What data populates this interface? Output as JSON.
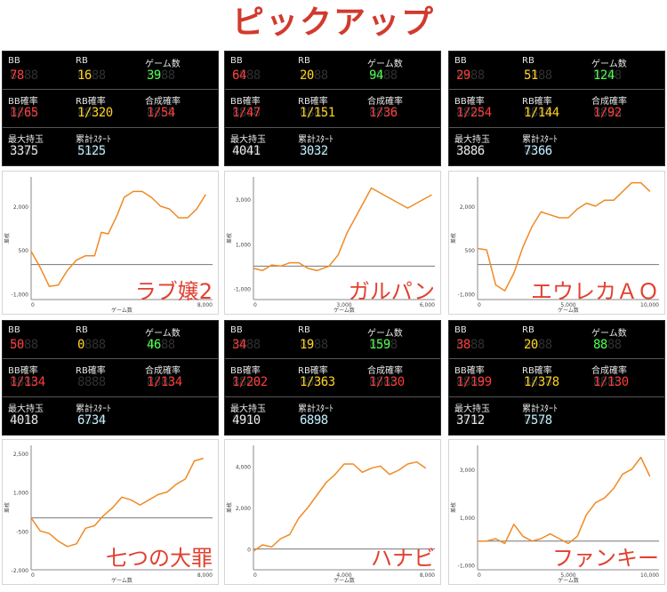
{
  "page_title": "ピックアップ",
  "labels": {
    "bb": "BB",
    "rb": "RB",
    "games": "ゲーム数",
    "bb_prob": "BB確率",
    "rb_prob": "RB確率",
    "combined_prob": "合成確率",
    "max_medals": "最大持玉",
    "total_starts": "累計ｽﾀｰﾄ",
    "y_axis": "差枚",
    "x_axis": "ゲーム数"
  },
  "machines": [
    {
      "name": "ラブ嬢2",
      "bb": "78",
      "rb": "16",
      "games": "39",
      "bb_prob": "1/65",
      "rb_prob": "1/320",
      "combined_prob": "1/54",
      "max_medals": "3375",
      "total_starts": "5125"
    },
    {
      "name": "ガルパン",
      "bb": "64",
      "rb": "20",
      "games": "94",
      "bb_prob": "1/47",
      "rb_prob": "1/151",
      "combined_prob": "1/36",
      "max_medals": "4041",
      "total_starts": "3032"
    },
    {
      "name": "エウレカＡＯ",
      "bb": "29",
      "rb": "51",
      "games": "124",
      "bb_prob": "1/254",
      "rb_prob": "1/144",
      "combined_prob": "1/92",
      "max_medals": "3886",
      "total_starts": "7366"
    },
    {
      "name": "七つの大罪",
      "bb": "50",
      "rb": "0",
      "games": "46",
      "bb_prob": "1/134",
      "rb_prob": "",
      "combined_prob": "1/134",
      "max_medals": "4018",
      "total_starts": "6734"
    },
    {
      "name": "ハナビ",
      "bb": "34",
      "rb": "19",
      "games": "159",
      "bb_prob": "1/202",
      "rb_prob": "1/363",
      "combined_prob": "1/130",
      "max_medals": "4910",
      "total_starts": "6898"
    },
    {
      "name": "ファンキー",
      "bb": "38",
      "rb": "20",
      "games": "88",
      "bb_prob": "1/199",
      "rb_prob": "1/378",
      "combined_prob": "1/130",
      "max_medals": "3712",
      "total_starts": "7578"
    }
  ],
  "chart_data": [
    {
      "type": "line",
      "xlim": [
        0,
        8000
      ],
      "ylim": [
        -1200,
        3000
      ],
      "xticks": [
        "0",
        "",
        "8,000"
      ],
      "yticks": [
        "2,000",
        "500",
        "-1,000"
      ],
      "x": [
        0,
        400,
        800,
        1200,
        1600,
        2000,
        2400,
        2800,
        3100,
        3400,
        3800,
        4100,
        4500,
        4900,
        5300,
        5700,
        6100,
        6500,
        6900,
        7300,
        7700
      ],
      "y": [
        450,
        -100,
        -750,
        -700,
        -200,
        150,
        300,
        300,
        1100,
        1050,
        1700,
        2300,
        2500,
        2500,
        2300,
        2000,
        1900,
        1600,
        1600,
        1900,
        2400
      ]
    },
    {
      "type": "line",
      "xlim": [
        0,
        6000
      ],
      "ylim": [
        -1500,
        4000
      ],
      "xticks": [
        "0",
        "3,000",
        "6,000"
      ],
      "yticks": [
        "3,000",
        "1,000",
        "-1,000"
      ],
      "x": [
        0,
        300,
        600,
        900,
        1200,
        1500,
        1800,
        2100,
        2500,
        2800,
        3100,
        3500,
        3900,
        4300,
        4700,
        5100,
        5500,
        5900
      ],
      "y": [
        -100,
        -200,
        50,
        0,
        150,
        150,
        -100,
        -200,
        0,
        500,
        1500,
        2500,
        3500,
        3200,
        2900,
        2600,
        2900,
        3200
      ]
    },
    {
      "type": "line",
      "xlim": [
        0,
        10000
      ],
      "ylim": [
        -1200,
        3000
      ],
      "xticks": [
        "0",
        "5,000",
        "10,000"
      ],
      "yticks": [
        "2,000",
        "500",
        "-1,000"
      ],
      "x": [
        0,
        500,
        1000,
        1500,
        2000,
        2500,
        3000,
        3500,
        4000,
        4500,
        5000,
        5500,
        6000,
        6500,
        7000,
        7500,
        8000,
        8500,
        9000,
        9500
      ],
      "y": [
        550,
        500,
        -700,
        -900,
        -300,
        600,
        1300,
        1800,
        1700,
        1600,
        1600,
        1900,
        2100,
        2000,
        2200,
        2200,
        2500,
        2800,
        2800,
        2500
      ]
    },
    {
      "type": "line",
      "xlim": [
        0,
        8000
      ],
      "ylim": [
        -2000,
        2800
      ],
      "xticks": [
        "0",
        "",
        "8,000"
      ],
      "yticks": [
        "2,500",
        "1,000",
        "-500",
        "-2,000"
      ],
      "x": [
        0,
        400,
        800,
        1200,
        1600,
        2000,
        2400,
        2800,
        3200,
        3600,
        4000,
        4400,
        4800,
        5200,
        5600,
        6000,
        6400,
        6800,
        7200,
        7600
      ],
      "y": [
        0,
        -500,
        -600,
        -900,
        -1100,
        -1000,
        -400,
        -300,
        100,
        400,
        800,
        700,
        500,
        700,
        900,
        1000,
        1300,
        1500,
        2200,
        2300
      ]
    },
    {
      "type": "line",
      "xlim": [
        0,
        8000
      ],
      "ylim": [
        -1000,
        5000
      ],
      "xticks": [
        "0",
        "4,000",
        "8,000"
      ],
      "yticks": [
        "4,000",
        "2,000",
        "0"
      ],
      "x": [
        0,
        400,
        800,
        1200,
        1600,
        2000,
        2400,
        2800,
        3200,
        3600,
        4000,
        4400,
        4800,
        5200,
        5600,
        6000,
        6400,
        6800,
        7200,
        7600
      ],
      "y": [
        -100,
        200,
        100,
        500,
        700,
        1500,
        2000,
        2600,
        3200,
        3600,
        4100,
        4100,
        3700,
        3900,
        4000,
        3600,
        3800,
        4100,
        4200,
        3900
      ]
    },
    {
      "type": "line",
      "xlim": [
        0,
        10000
      ],
      "ylim": [
        -1200,
        4000
      ],
      "xticks": [
        "0",
        "5,000",
        "10,000"
      ],
      "yticks": [
        "3,000",
        "1,000",
        "-1,000"
      ],
      "x": [
        0,
        500,
        1000,
        1500,
        2000,
        2500,
        3000,
        3500,
        4000,
        4500,
        5000,
        5500,
        6000,
        6500,
        7000,
        7500,
        8000,
        8500,
        9000,
        9500
      ],
      "y": [
        0,
        0,
        100,
        -100,
        700,
        200,
        0,
        100,
        300,
        100,
        -100,
        200,
        1100,
        1600,
        1800,
        2200,
        2800,
        3000,
        3500,
        2700
      ]
    }
  ]
}
